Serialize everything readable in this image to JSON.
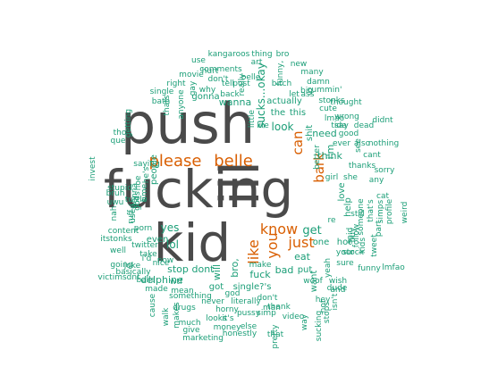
{
  "colors": {
    "big": "#4a4a4a",
    "mid": "#d95f02",
    "small": "#1b9e77"
  },
  "words": [
    {
      "t": "push",
      "c": "big"
    },
    {
      "t": "fucking",
      "c": "big"
    },
    {
      "t": "kid",
      "c": "big"
    },
    {
      "t": "ill",
      "c": "big"
    },
    {
      "t": "please",
      "c": "mid"
    },
    {
      "t": "belle",
      "c": "mid"
    },
    {
      "t": "can",
      "c": "mid"
    },
    {
      "t": "bark",
      "c": "mid"
    },
    {
      "t": "know",
      "c": "mid"
    },
    {
      "t": "like",
      "c": "mid"
    },
    {
      "t": "you",
      "c": "mid"
    },
    {
      "t": "just",
      "c": "mid"
    },
    {
      "t": "get",
      "c": "small"
    },
    {
      "t": "yes",
      "c": "small"
    },
    {
      "t": "lol",
      "c": "small"
    },
    {
      "t": "even",
      "c": "small"
    },
    {
      "t": "stop",
      "c": "small"
    },
    {
      "t": "dont",
      "c": "small"
    },
    {
      "t": "will",
      "c": "small"
    },
    {
      "t": "bro,",
      "c": "small"
    },
    {
      "t": "fuck",
      "c": "small"
    },
    {
      "t": "bad",
      "c": "small"
    },
    {
      "t": "put",
      "c": "small"
    },
    {
      "t": "eat",
      "c": "small"
    },
    {
      "t": "one",
      "c": "small"
    },
    {
      "t": "hot",
      "c": "small"
    },
    {
      "t": "look",
      "c": "small"
    },
    {
      "t": "shit",
      "c": "small"
    },
    {
      "t": "wanna",
      "c": "small"
    },
    {
      "t": "the",
      "c": "small"
    },
    {
      "t": "this",
      "c": "small"
    },
    {
      "t": "actually",
      "c": "small"
    },
    {
      "t": "sucks...okay",
      "c": "small"
    },
    {
      "t": "gonna",
      "c": "small"
    },
    {
      "t": "back",
      "c": "small"
    },
    {
      "t": "post",
      "c": "small"
    },
    {
      "t": "need",
      "c": "small"
    },
    {
      "t": "i'm",
      "c": "small"
    },
    {
      "t": "think",
      "c": "small"
    },
    {
      "t": "love",
      "c": "small"
    },
    {
      "t": "help",
      "c": "small"
    },
    {
      "t": "girl",
      "c": "small"
    },
    {
      "t": "she",
      "c": "small"
    },
    {
      "t": "thanks",
      "c": "small"
    },
    {
      "t": "cant",
      "c": "small"
    },
    {
      "t": "see",
      "c": "small"
    },
    {
      "t": "ever",
      "c": "small"
    },
    {
      "t": "also",
      "c": "small"
    },
    {
      "t": "nothing",
      "c": "small"
    },
    {
      "t": "delphine",
      "c": "small"
    },
    {
      "t": "got",
      "c": "small"
    },
    {
      "t": "single?'s",
      "c": "small"
    },
    {
      "t": "make",
      "c": "small"
    },
    {
      "t": "don't",
      "c": "small"
    },
    {
      "t": "man",
      "c": "small"
    },
    {
      "t": "thank",
      "c": "small"
    },
    {
      "t": "want",
      "c": "small"
    },
    {
      "t": "woof",
      "c": "small"
    },
    {
      "t": "wish",
      "c": "small"
    },
    {
      "t": "god",
      "c": "small"
    },
    {
      "t": "literally",
      "c": "small"
    },
    {
      "t": "pussy",
      "c": "small"
    },
    {
      "t": "simp",
      "c": "small"
    },
    {
      "t": "mean",
      "c": "small"
    },
    {
      "t": "something",
      "c": "small"
    },
    {
      "t": "never",
      "c": "small"
    },
    {
      "t": "horny",
      "c": "small"
    },
    {
      "t": "saying",
      "c": "small"
    },
    {
      "t": "people",
      "c": "small"
    },
    {
      "t": "he's",
      "c": "small"
    },
    {
      "t": "porn",
      "c": "small"
    },
    {
      "t": "twitter",
      "c": "small"
    },
    {
      "t": "take",
      "c": "small"
    },
    {
      "t": "now",
      "c": "small"
    },
    {
      "t": "wtf",
      "c": "small"
    },
    {
      "t": "made",
      "c": "small"
    },
    {
      "t": "drugs",
      "c": "small"
    },
    {
      "t": "much",
      "c": "small"
    },
    {
      "t": "give",
      "c": "small"
    },
    {
      "t": "marketing",
      "c": "small"
    },
    {
      "t": "honestly",
      "c": "small"
    },
    {
      "t": "money",
      "c": "small"
    },
    {
      "t": "looks",
      "c": "small"
    },
    {
      "t": "it's",
      "c": "small"
    },
    {
      "t": "else",
      "c": "small"
    },
    {
      "t": "that",
      "c": "small"
    },
    {
      "t": "video",
      "c": "small"
    },
    {
      "t": "pretty",
      "c": "small"
    },
    {
      "t": "way",
      "c": "small"
    },
    {
      "t": "sucking",
      "c": "small"
    },
    {
      "t": "kangaroos",
      "c": "small"
    },
    {
      "t": "thing",
      "c": "small"
    },
    {
      "t": "use",
      "c": "small"
    },
    {
      "t": "hurt",
      "c": "small"
    },
    {
      "t": "comments",
      "c": "small"
    },
    {
      "t": "movie",
      "c": "small"
    },
    {
      "t": "don't",
      "c": "small"
    },
    {
      "t": "tell",
      "c": "small"
    },
    {
      "t": "really",
      "c": "small"
    },
    {
      "t": "belle,",
      "c": "small"
    },
    {
      "t": "funny,",
      "c": "small"
    },
    {
      "t": "new",
      "c": "small"
    },
    {
      "t": "many",
      "c": "small"
    },
    {
      "t": "damn",
      "c": "small"
    },
    {
      "t": "cummin'",
      "c": "small"
    },
    {
      "t": "bitch",
      "c": "small"
    },
    {
      "t": "right",
      "c": "small"
    },
    {
      "t": "gay",
      "c": "small"
    },
    {
      "t": "why",
      "c": "small"
    },
    {
      "t": "big",
      "c": "small"
    },
    {
      "t": "let",
      "c": "small"
    },
    {
      "t": "ass",
      "c": "small"
    },
    {
      "t": "stonks",
      "c": "small"
    },
    {
      "t": "thought",
      "c": "small"
    },
    {
      "t": "cute",
      "c": "small"
    },
    {
      "t": "lmao",
      "c": "small"
    },
    {
      "t": "wrong",
      "c": "small"
    },
    {
      "t": "tide",
      "c": "small"
    },
    {
      "t": "say",
      "c": "small"
    },
    {
      "t": "dead",
      "c": "small"
    },
    {
      "t": "better",
      "c": "small"
    },
    {
      "t": "single",
      "c": "small"
    },
    {
      "t": "bath",
      "c": "small"
    },
    {
      "t": "thats",
      "c": "small"
    },
    {
      "t": "anyone",
      "c": "small"
    },
    {
      "t": "little",
      "c": "small"
    },
    {
      "t": "life",
      "c": "small"
    },
    {
      "t": "getting",
      "c": "small"
    },
    {
      "t": "tho",
      "c": "small"
    },
    {
      "t": "que",
      "c": "small"
    },
    {
      "t": "invest",
      "c": "small"
    },
    {
      "t": "gonna",
      "c": "small"
    },
    {
      "t": "stupid",
      "c": "small"
    },
    {
      "t": "bruh",
      "c": "small"
    },
    {
      "t": "uwu",
      "c": "small"
    },
    {
      "t": "turtle",
      "c": "small"
    },
    {
      "t": "used",
      "c": "small"
    },
    {
      "t": "gods",
      "c": "small"
    },
    {
      "t": "itstonks",
      "c": "small"
    },
    {
      "t": "content",
      "c": "small"
    },
    {
      "t": "well",
      "c": "small"
    },
    {
      "t": "joke",
      "c": "small"
    },
    {
      "t": "going",
      "c": "small"
    },
    {
      "t": "basically",
      "c": "small"
    },
    {
      "t": "balls",
      "c": "small"
    },
    {
      "t": "victimsdnt",
      "c": "small"
    },
    {
      "t": "cause",
      "c": "small"
    },
    {
      "t": "walk",
      "c": "small"
    },
    {
      "t": "makes",
      "c": "small"
    },
    {
      "t": "nice",
      "c": "small"
    },
    {
      "t": "i'd",
      "c": "small"
    },
    {
      "t": "nah",
      "c": "small"
    },
    {
      "t": "ruff",
      "c": "small"
    },
    {
      "t": "hoe",
      "c": "small"
    },
    {
      "t": "time",
      "c": "small"
    },
    {
      "t": "sorry",
      "c": "small"
    },
    {
      "t": "any",
      "c": "small"
    },
    {
      "t": "cat",
      "c": "small"
    },
    {
      "t": "profile",
      "c": "small"
    },
    {
      "t": "simps",
      "c": "small"
    },
    {
      "t": "weird",
      "c": "small"
    },
    {
      "t": "part",
      "c": "small"
    },
    {
      "t": "that's",
      "c": "small"
    },
    {
      "t": "someone",
      "c": "small"
    },
    {
      "t": "still",
      "c": "small"
    },
    {
      "t": "said",
      "c": "small"
    },
    {
      "t": "follow",
      "c": "small"
    },
    {
      "t": "buy",
      "c": "small"
    },
    {
      "t": "kids",
      "c": "small"
    },
    {
      "t": "tweet",
      "c": "small"
    },
    {
      "t": "stock",
      "c": "small"
    },
    {
      "t": "funny",
      "c": "small"
    },
    {
      "t": "lmfao",
      "c": "small"
    },
    {
      "t": "yeah",
      "c": "small"
    },
    {
      "t": "sure",
      "c": "small"
    },
    {
      "t": "your",
      "c": "small"
    },
    {
      "t": "dude",
      "c": "small"
    },
    {
      "t": "isn't",
      "c": "small"
    },
    {
      "t": "stops",
      "c": "small"
    },
    {
      "t": "and",
      "c": "small"
    },
    {
      "t": "hey",
      "c": "small"
    },
    {
      "t": "not",
      "c": "small"
    },
    {
      "t": "re",
      "c": "small"
    },
    {
      "t": "good",
      "c": "small"
    },
    {
      "t": "didnt",
      "c": "small"
    },
    {
      "t": "art",
      "c": "small"
    },
    {
      "t": "bro",
      "c": "small"
    }
  ]
}
